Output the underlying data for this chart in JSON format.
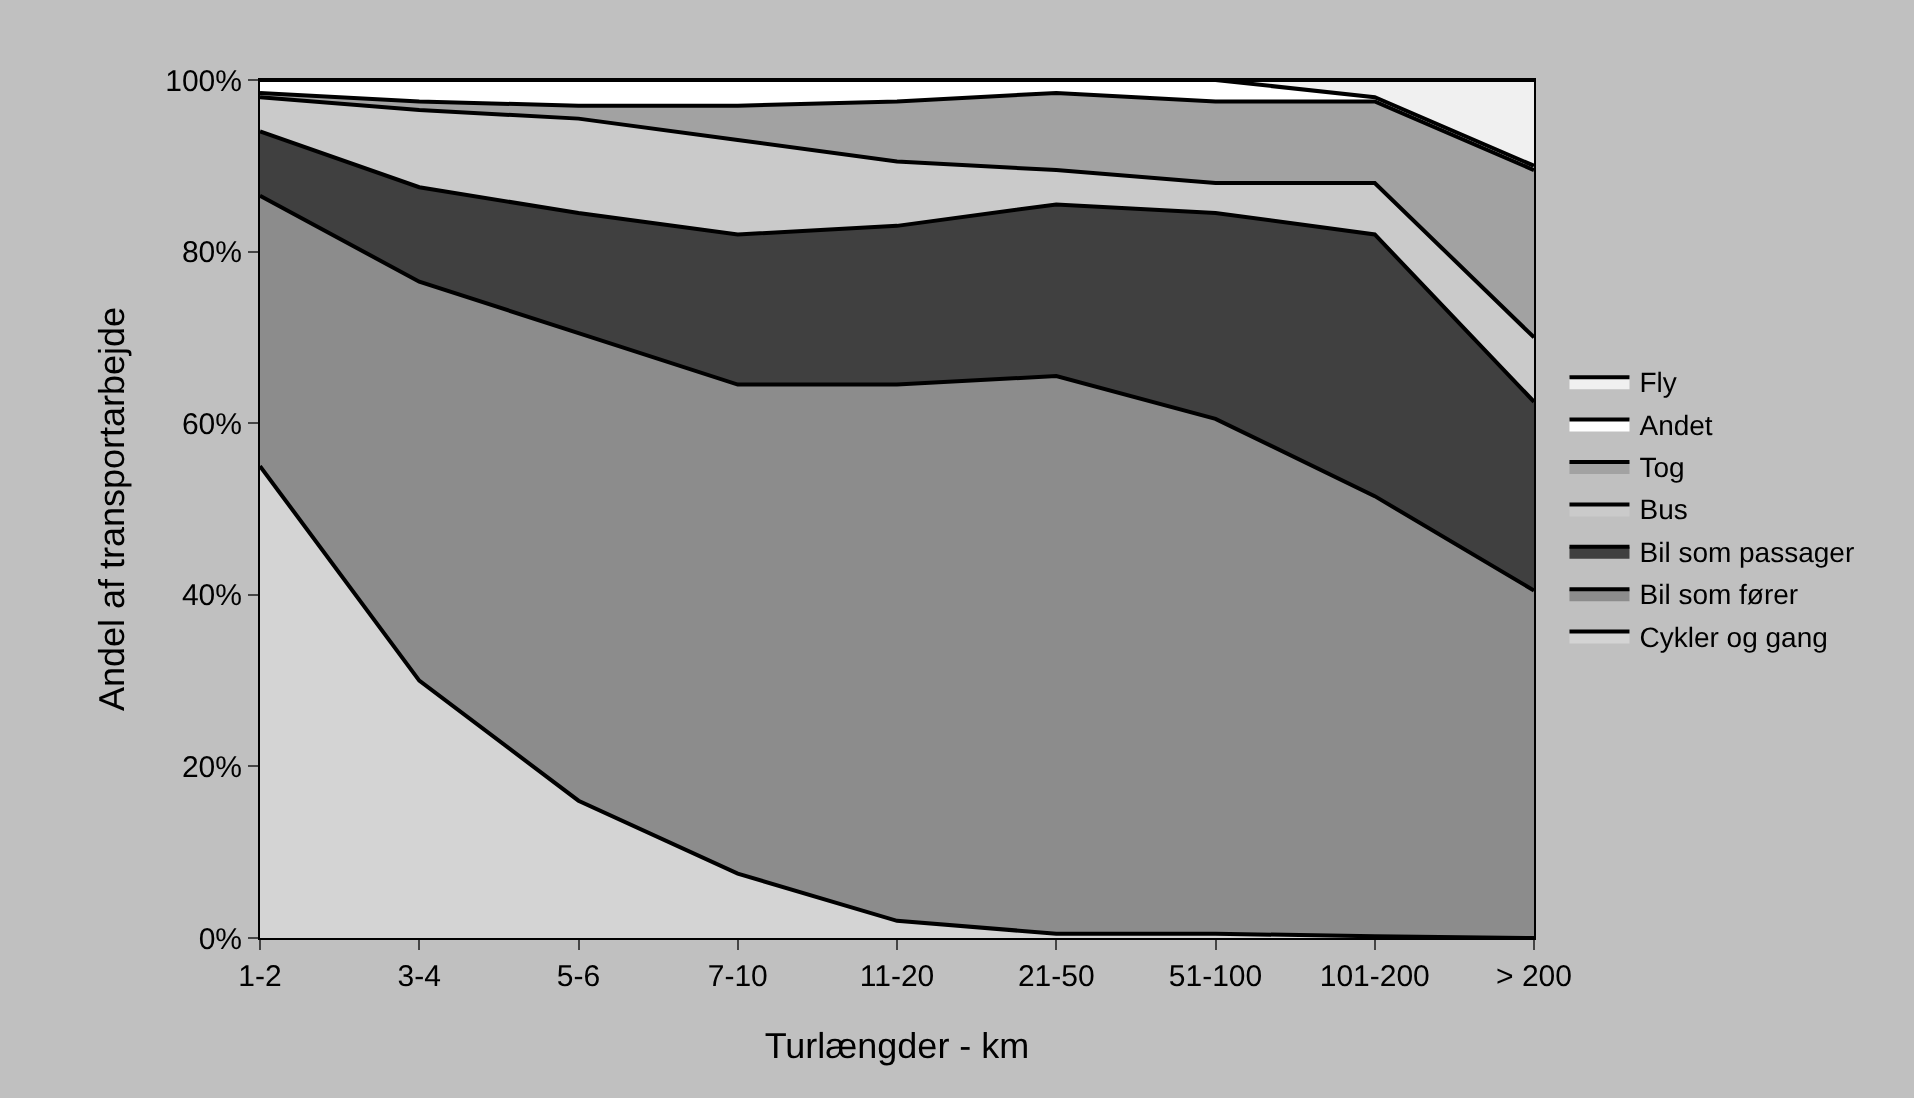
{
  "chart_data": {
    "type": "area",
    "stacked": true,
    "xlabel": "Turlængder - km",
    "ylabel": "Andel af transportarbejde",
    "categories": [
      "1-2",
      "3-4",
      "5-6",
      "7-10",
      "11-20",
      "21-50",
      "51-100",
      "101-200",
      "> 200"
    ],
    "series": [
      {
        "name": "Cykler og gang",
        "color": "#d4d4d4",
        "values": [
          55,
          30,
          16,
          7.5,
          2,
          0.5,
          0.5,
          0.2,
          0
        ]
      },
      {
        "name": "Bil som fører",
        "color": "#8c8c8c",
        "values": [
          31.5,
          46.5,
          54.5,
          57,
          62.5,
          65,
          60,
          51.3,
          40.5
        ]
      },
      {
        "name": "Bil som passager",
        "color": "#404040",
        "values": [
          7.5,
          11,
          14,
          17.5,
          18.5,
          20,
          24,
          30.5,
          22
        ]
      },
      {
        "name": "Bus",
        "color": "#cacaca",
        "values": [
          4,
          9,
          11,
          11,
          7.5,
          4,
          3.5,
          6,
          7.5
        ]
      },
      {
        "name": "Tog",
        "color": "#a2a2a2",
        "values": [
          0.5,
          1,
          1.5,
          4,
          7,
          9,
          9.5,
          9.5,
          19.5
        ]
      },
      {
        "name": "Andet",
        "color": "#ffffff",
        "values": [
          1.5,
          2.5,
          3,
          3,
          2.5,
          1.5,
          2.5,
          0.5,
          0.5
        ]
      },
      {
        "name": "Fly",
        "color": "#f0f0f0",
        "values": [
          0,
          0,
          0,
          0,
          0,
          0,
          0,
          2,
          10
        ]
      }
    ],
    "ylim": [
      0,
      100
    ],
    "yticks": [
      {
        "value": 0,
        "label": "0%"
      },
      {
        "value": 20,
        "label": "20%"
      },
      {
        "value": 40,
        "label": "40%"
      },
      {
        "value": 60,
        "label": "60%"
      },
      {
        "value": 80,
        "label": "80%"
      },
      {
        "value": 100,
        "label": "100%"
      }
    ],
    "legend": "right",
    "line_style": "solid",
    "marker": "none"
  }
}
